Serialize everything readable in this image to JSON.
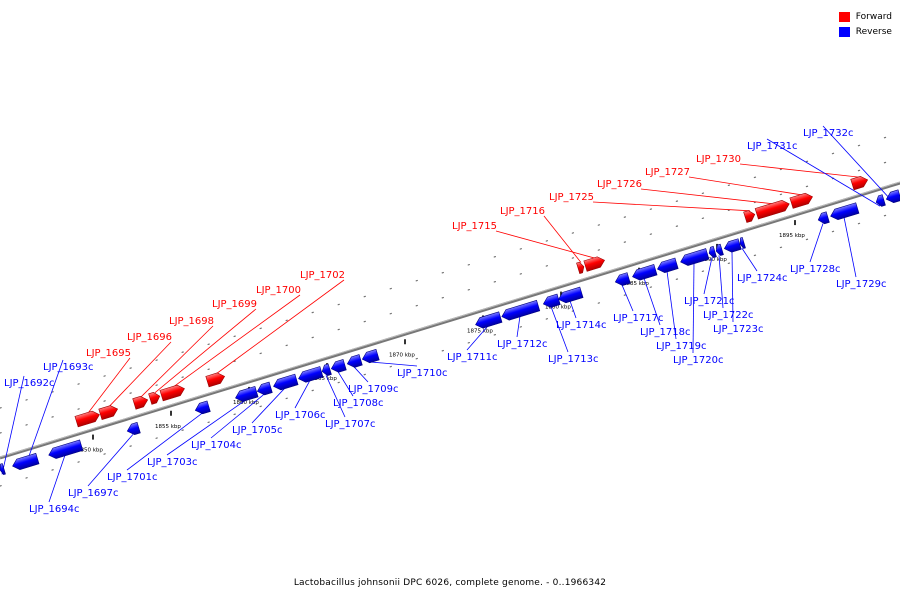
{
  "caption": "Lactobacillus johnsonii DPC 6026, complete genome. - 0..1966342",
  "colors": {
    "forward": "#ff0000",
    "reverse": "#0000ff",
    "backbone": "#808080"
  },
  "legend": [
    {
      "label": "Forward",
      "color": "#ff0000"
    },
    {
      "label": "Reverse",
      "color": "#0000ff"
    }
  ],
  "ticks": [
    {
      "label": "1850 kbp",
      "pos": 1850
    },
    {
      "label": "1855 kbp",
      "pos": 1855
    },
    {
      "label": "1860 kbp",
      "pos": 1860
    },
    {
      "label": "1865 kbp",
      "pos": 1865
    },
    {
      "label": "1870 kbp",
      "pos": 1870
    },
    {
      "label": "1875 kbp",
      "pos": 1875
    },
    {
      "label": "1880 kbp",
      "pos": 1880
    },
    {
      "label": "1885 kbp",
      "pos": 1885
    },
    {
      "label": "1890 kbp",
      "pos": 1890
    },
    {
      "label": "1895 kbp",
      "pos": 1895
    }
  ],
  "genes": [
    {
      "label": "LJP_1692c",
      "strand": "reverse"
    },
    {
      "label": "LJP_1693c",
      "strand": "reverse"
    },
    {
      "label": "LJP_1694c",
      "strand": "reverse"
    },
    {
      "label": "LJP_1695",
      "strand": "forward"
    },
    {
      "label": "LJP_1696",
      "strand": "forward"
    },
    {
      "label": "LJP_1697c",
      "strand": "reverse"
    },
    {
      "label": "LJP_1698",
      "strand": "forward"
    },
    {
      "label": "LJP_1699",
      "strand": "forward"
    },
    {
      "label": "LJP_1700",
      "strand": "forward"
    },
    {
      "label": "LJP_1701c",
      "strand": "reverse"
    },
    {
      "label": "LJP_1702",
      "strand": "forward"
    },
    {
      "label": "LJP_1703c",
      "strand": "reverse"
    },
    {
      "label": "LJP_1704c",
      "strand": "reverse"
    },
    {
      "label": "LJP_1705c",
      "strand": "reverse"
    },
    {
      "label": "LJP_1706c",
      "strand": "reverse"
    },
    {
      "label": "LJP_1707c",
      "strand": "reverse"
    },
    {
      "label": "LJP_1708c",
      "strand": "reverse"
    },
    {
      "label": "LJP_1709c",
      "strand": "reverse"
    },
    {
      "label": "LJP_1710c",
      "strand": "reverse"
    },
    {
      "label": "LJP_1711c",
      "strand": "reverse"
    },
    {
      "label": "LJP_1712c",
      "strand": "reverse"
    },
    {
      "label": "LJP_1713c",
      "strand": "reverse"
    },
    {
      "label": "LJP_1714c",
      "strand": "reverse"
    },
    {
      "label": "LJP_1715",
      "strand": "forward"
    },
    {
      "label": "LJP_1716",
      "strand": "forward"
    },
    {
      "label": "LJP_1717c",
      "strand": "reverse"
    },
    {
      "label": "LJP_1718c",
      "strand": "reverse"
    },
    {
      "label": "LJP_1719c",
      "strand": "reverse"
    },
    {
      "label": "LJP_1720c",
      "strand": "reverse"
    },
    {
      "label": "LJP_1721c",
      "strand": "reverse"
    },
    {
      "label": "LJP_1722c",
      "strand": "reverse"
    },
    {
      "label": "LJP_1723c",
      "strand": "reverse"
    },
    {
      "label": "LJP_1724c",
      "strand": "reverse"
    },
    {
      "label": "LJP_1725",
      "strand": "forward"
    },
    {
      "label": "LJP_1726",
      "strand": "forward"
    },
    {
      "label": "LJP_1727",
      "strand": "forward"
    },
    {
      "label": "LJP_1728c",
      "strand": "reverse"
    },
    {
      "label": "LJP_1729c",
      "strand": "reverse"
    },
    {
      "label": "LJP_1730",
      "strand": "forward"
    },
    {
      "label": "LJP_1731c",
      "strand": "reverse"
    },
    {
      "label": "LJP_1732c",
      "strand": "reverse"
    }
  ]
}
